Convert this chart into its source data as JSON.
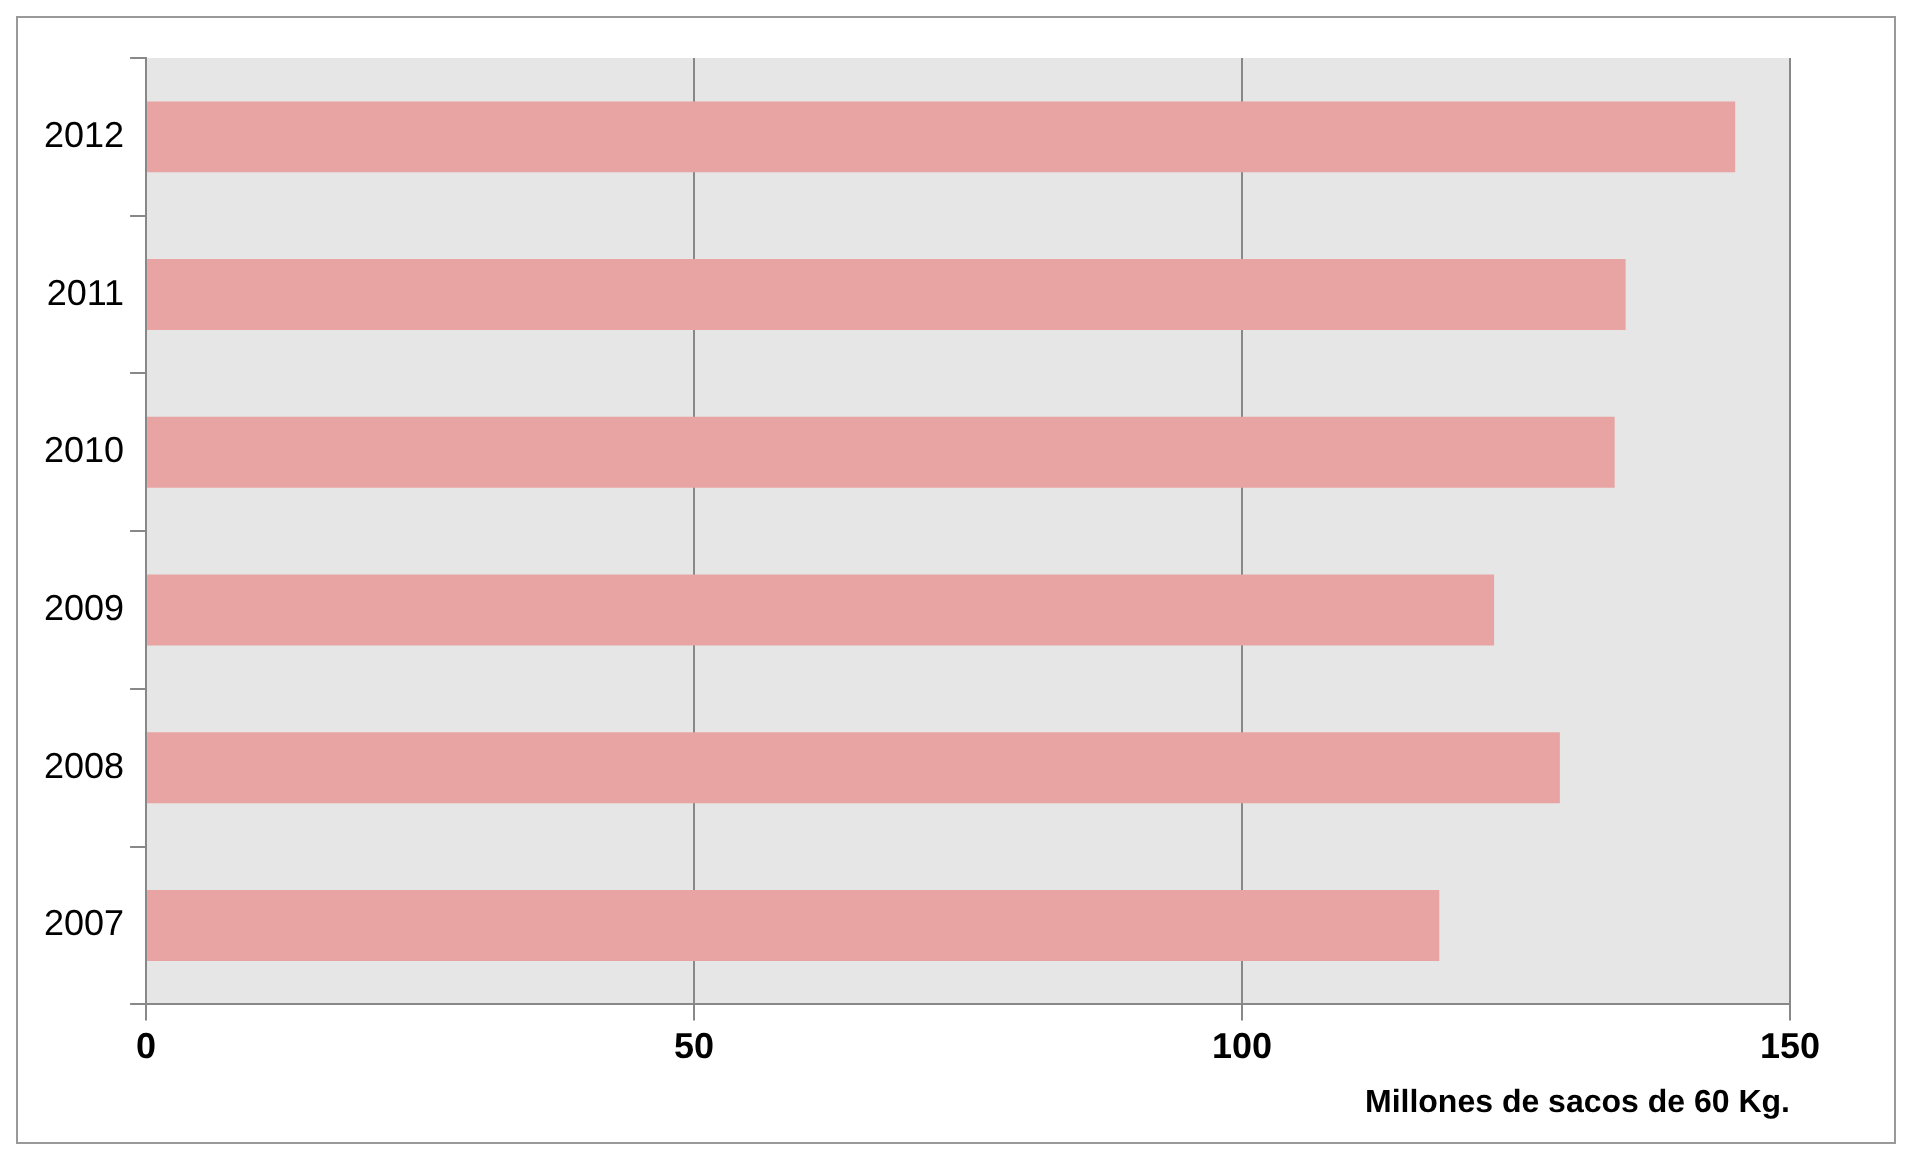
{
  "chart_data": {
    "type": "bar",
    "orientation": "horizontal",
    "xlabel": "Millones de sacos de 60 Kg.",
    "categories": [
      "2012",
      "2011",
      "2010",
      "2009",
      "2008",
      "2007"
    ],
    "values": [
      145,
      135,
      134,
      123,
      129,
      118
    ],
    "color": "#e8a3a3",
    "xlim": [
      0,
      150
    ],
    "xticks": [
      0,
      50,
      100,
      150
    ],
    "grid": "x",
    "legend": false
  }
}
